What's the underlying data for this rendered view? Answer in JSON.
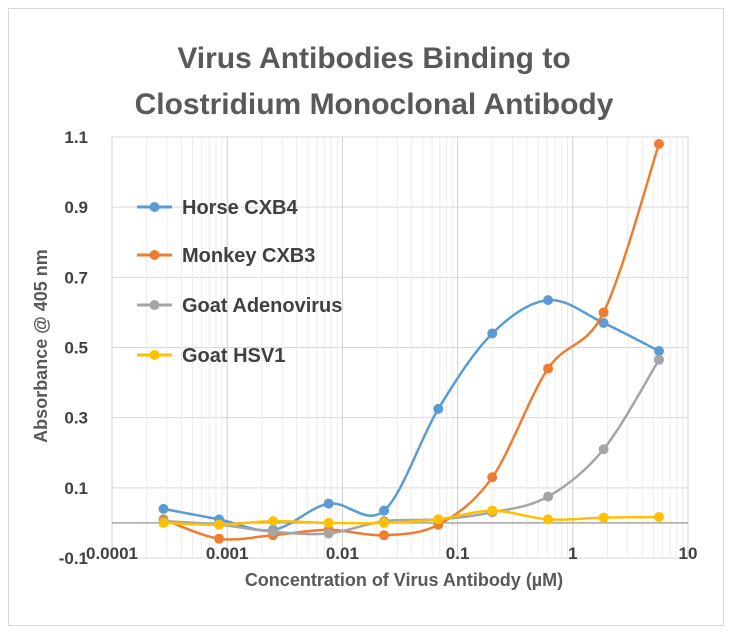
{
  "chart_data": {
    "type": "line",
    "title_lines": [
      "Virus Antibodies Binding to",
      "Clostridium Monoclonal Antibody"
    ],
    "xlabel": "Concentration of Virus Antibody (µM)",
    "ylabel": "Absorbance @ 405 nm",
    "x_scale": "log",
    "xlim": [
      0.0001,
      10
    ],
    "ylim": [
      -0.1,
      1.1
    ],
    "x_ticks": [
      0.0001,
      0.001,
      0.01,
      0.1,
      1,
      10
    ],
    "x_tick_labels": [
      "0.0001",
      "0.001",
      "0.01",
      "0.1",
      "1",
      "10"
    ],
    "y_ticks": [
      -0.1,
      0.1,
      0.3,
      0.5,
      0.7,
      0.9,
      1.1
    ],
    "y_tick_labels": [
      "-0.1",
      "0.1",
      "0.3",
      "0.5",
      "0.7",
      "0.9",
      "1.1"
    ],
    "grid": true,
    "legend_position": "left",
    "x": [
      0.00028,
      0.00085,
      0.0025,
      0.0076,
      0.023,
      0.068,
      0.2,
      0.61,
      1.85,
      5.6
    ],
    "series": [
      {
        "name": "Horse CXB4",
        "color": "#5b9bd5",
        "values": [
          0.04,
          0.01,
          -0.02,
          0.055,
          0.035,
          0.325,
          0.54,
          0.635,
          0.57,
          0.49
        ]
      },
      {
        "name": "Monkey CXB3",
        "color": "#ed7d31",
        "values": [
          0.01,
          -0.045,
          -0.035,
          -0.02,
          -0.035,
          -0.005,
          0.13,
          0.44,
          0.6,
          1.08
        ]
      },
      {
        "name": "Goat Adenovirus",
        "color": "#a5a5a5",
        "values": [
          0.005,
          -0.005,
          -0.025,
          -0.03,
          0.005,
          0.01,
          0.03,
          0.075,
          0.21,
          0.465
        ]
      },
      {
        "name": "Goat HSV1",
        "color": "#ffc000",
        "values": [
          0.0,
          -0.005,
          0.005,
          0.0,
          0.0,
          0.01,
          0.035,
          0.01,
          0.015,
          0.017
        ]
      }
    ]
  }
}
